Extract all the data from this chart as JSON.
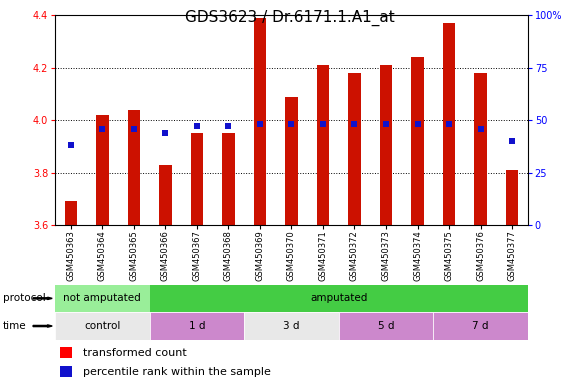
{
  "title": "GDS3623 / Dr.6171.1.A1_at",
  "samples": [
    "GSM450363",
    "GSM450364",
    "GSM450365",
    "GSM450366",
    "GSM450367",
    "GSM450368",
    "GSM450369",
    "GSM450370",
    "GSM450371",
    "GSM450372",
    "GSM450373",
    "GSM450374",
    "GSM450375",
    "GSM450376",
    "GSM450377"
  ],
  "red_values": [
    3.69,
    4.02,
    4.04,
    3.83,
    3.95,
    3.95,
    4.39,
    4.09,
    4.21,
    4.18,
    4.21,
    4.24,
    4.37,
    4.18,
    3.81
  ],
  "blue_right_axis": [
    38,
    46,
    46,
    44,
    47,
    47,
    48,
    48,
    48,
    48,
    48,
    48,
    48,
    46,
    40
  ],
  "ylim_left": [
    3.6,
    4.4
  ],
  "ylim_right": [
    0,
    100
  ],
  "yticks_left": [
    3.6,
    3.8,
    4.0,
    4.2,
    4.4
  ],
  "yticks_right": [
    0,
    25,
    50,
    75,
    100
  ],
  "ytick_labels_right": [
    "0",
    "25",
    "50",
    "75",
    "100%"
  ],
  "bar_color": "#cc1100",
  "blue_color": "#1111cc",
  "title_fontsize": 11,
  "tick_fontsize": 7,
  "bar_width": 0.4,
  "protocol_label": "protocol",
  "time_label": "time",
  "legend_red": "transformed count",
  "legend_blue": "percentile rank within the sample",
  "not_amputated_color": "#99ee99",
  "amputated_color": "#44cc44",
  "control_color": "#e8e8e8",
  "time1d_color": "#cc88cc",
  "time3d_color": "#e8e8e8",
  "time5d_color": "#cc88cc",
  "time7d_color": "#cc88cc"
}
